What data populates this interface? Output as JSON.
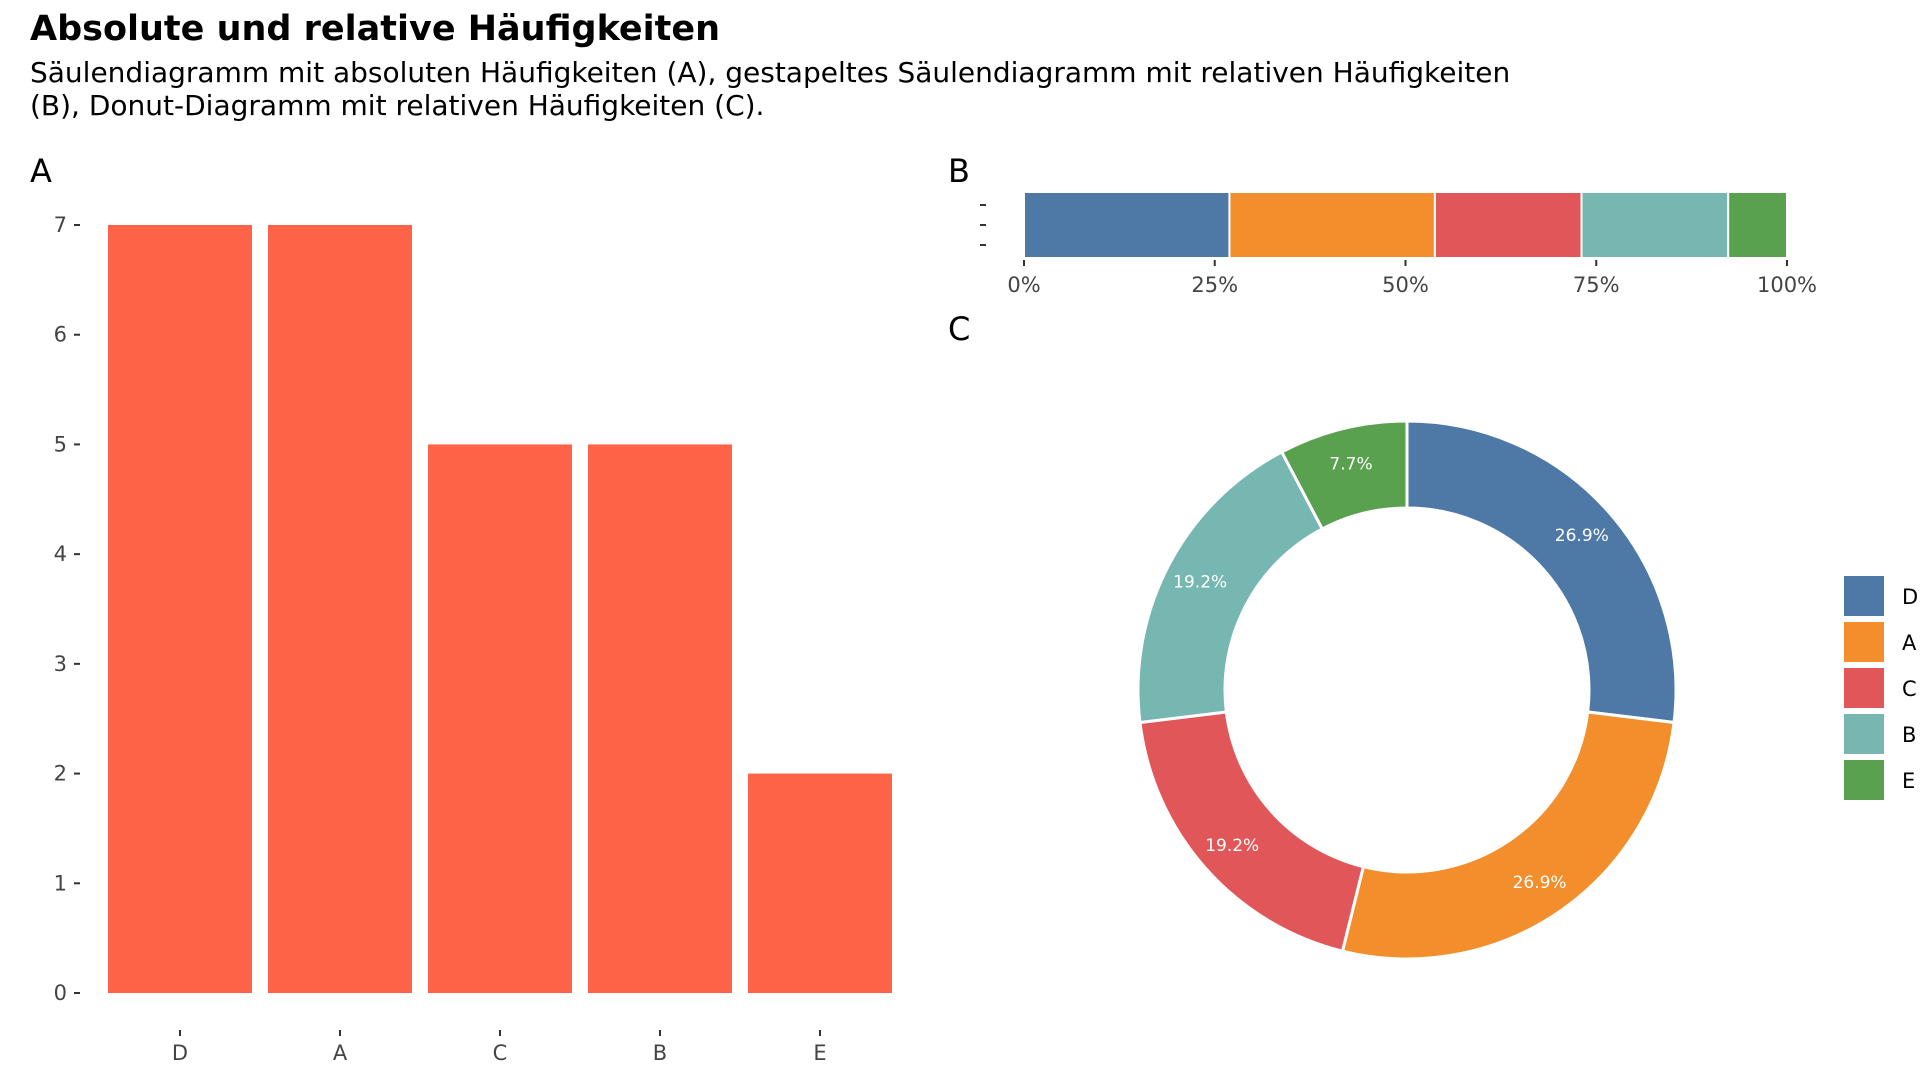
{
  "title": "Absolute und relative Häufigkeiten",
  "subtitle_lines": [
    "Säulendiagramm mit absoluten Häufigkeiten (A), gestapeltes Säulendiagramm mit relativen Häufigkeiten",
    "(B), Donut-Diagramm mit relativen Häufigkeiten (C)."
  ],
  "colors": {
    "bar_fill": "#FF6347",
    "D": "#4E79A7",
    "A": "#F28E2B",
    "C": "#E15759",
    "B": "#76B7B2",
    "E": "#59A14F",
    "tick_text": "#444444"
  },
  "chart_data": [
    {
      "panel": "A",
      "type": "bar",
      "categories": [
        "D",
        "A",
        "C",
        "B",
        "E"
      ],
      "values": [
        7,
        7,
        5,
        5,
        2
      ],
      "ylim": [
        0,
        7
      ],
      "y_ticks": [
        0,
        1,
        2,
        3,
        4,
        5,
        6,
        7
      ],
      "xlabel": "",
      "ylabel": "",
      "grid": false
    },
    {
      "panel": "B",
      "type": "bar",
      "orientation": "horizontal",
      "stacked": true,
      "categories": [
        "D",
        "A",
        "C",
        "B",
        "E"
      ],
      "values": [
        26.9,
        26.9,
        19.2,
        19.2,
        7.7
      ],
      "x_ticks": [
        "0%",
        "25%",
        "50%",
        "75%",
        "100%"
      ],
      "xlim": [
        0,
        100
      ],
      "grid": false
    },
    {
      "panel": "C",
      "type": "pie",
      "donut": true,
      "categories": [
        "D",
        "A",
        "C",
        "B",
        "E"
      ],
      "values": [
        26.9,
        26.9,
        19.2,
        19.2,
        7.7
      ],
      "labels": [
        "26.9%",
        "26.9%",
        "19.2%",
        "19.2%",
        "7.7%"
      ],
      "legend": [
        "D",
        "A",
        "C",
        "B",
        "E"
      ],
      "legend_position": "right"
    }
  ]
}
